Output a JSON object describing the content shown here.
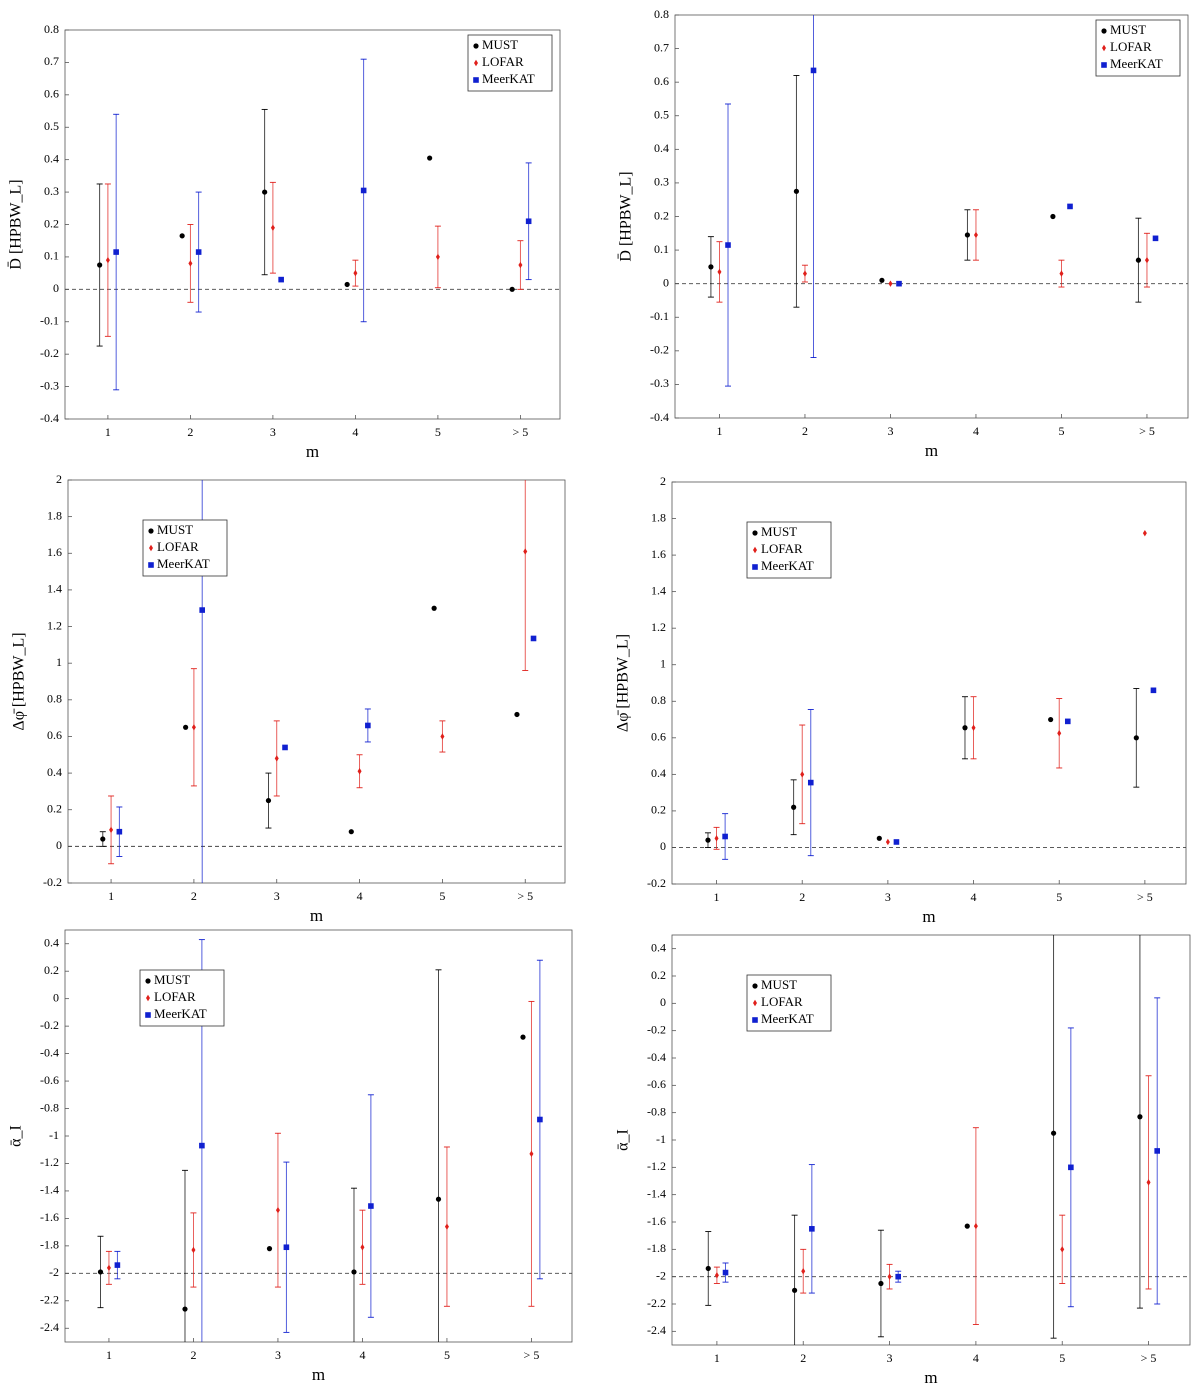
{
  "chart_data": [
    {
      "type": "errorbar",
      "ylabel": "D̄ [HPBW_L]",
      "xlabel": "m",
      "categories": [
        "1",
        "2",
        "3",
        "4",
        "5",
        "> 5"
      ],
      "ylim": [
        -0.4,
        0.8
      ],
      "yticks": [
        -0.4,
        -0.3,
        -0.2,
        -0.1,
        0,
        0.1,
        0.2,
        0.3,
        0.4,
        0.5,
        0.6,
        0.7,
        0.8
      ],
      "hline": 0,
      "legend": "upper right",
      "series": [
        {
          "name": "MUST",
          "color": "#000000",
          "marker": "circle",
          "values": [
            0.075,
            0.165,
            0.3,
            0.015,
            0.405,
            0.0
          ],
          "errors": [
            0.25,
            null,
            0.255,
            null,
            null,
            null
          ]
        },
        {
          "name": "LOFAR",
          "color": "#e0201b",
          "marker": "diamond",
          "values": [
            0.09,
            0.08,
            0.19,
            0.05,
            0.1,
            0.075
          ],
          "errors": [
            0.235,
            0.12,
            0.14,
            0.04,
            0.095,
            0.075
          ]
        },
        {
          "name": "MeerKAT",
          "color": "#1020d0",
          "marker": "square",
          "values": [
            0.115,
            0.115,
            0.03,
            0.305,
            null,
            0.21
          ],
          "errors": [
            0.425,
            0.185,
            null,
            0.405,
            null,
            0.18
          ]
        }
      ]
    },
    {
      "type": "errorbar",
      "ylabel": "D̄ [HPBW_L]",
      "xlabel": "m",
      "categories": [
        "1",
        "2",
        "3",
        "4",
        "5",
        "> 5"
      ],
      "ylim": [
        -0.4,
        0.8
      ],
      "yticks": [
        -0.4,
        -0.3,
        -0.2,
        -0.1,
        0,
        0.1,
        0.2,
        0.3,
        0.4,
        0.5,
        0.6,
        0.7,
        0.8
      ],
      "hline": 0,
      "legend": "upper right",
      "series": [
        {
          "name": "MUST",
          "color": "#000000",
          "marker": "circle",
          "values": [
            0.05,
            0.275,
            0.01,
            0.145,
            0.2,
            0.07
          ],
          "errors": [
            0.09,
            0.345,
            null,
            0.075,
            null,
            0.125
          ]
        },
        {
          "name": "LOFAR",
          "color": "#e0201b",
          "marker": "diamond",
          "values": [
            0.035,
            0.03,
            0.0,
            0.145,
            0.03,
            0.07
          ],
          "errors": [
            0.09,
            0.025,
            null,
            0.075,
            0.04,
            0.08
          ]
        },
        {
          "name": "MeerKAT",
          "color": "#1020d0",
          "marker": "square",
          "values": [
            0.115,
            0.635,
            0.0,
            null,
            0.23,
            0.135
          ],
          "errors": [
            0.42,
            0.855,
            null,
            null,
            null,
            null
          ]
        }
      ]
    },
    {
      "type": "errorbar",
      "ylabel": "Δφ̄ [HPBW_L]",
      "xlabel": "m",
      "categories": [
        "1",
        "2",
        "3",
        "4",
        "5",
        "> 5"
      ],
      "ylim": [
        -0.2,
        2
      ],
      "yticks": [
        -0.2,
        0,
        0.2,
        0.4,
        0.6,
        0.8,
        1,
        1.2,
        1.4,
        1.6,
        1.8,
        2
      ],
      "hline": 0,
      "legend": "upper left",
      "series": [
        {
          "name": "MUST",
          "color": "#000000",
          "marker": "circle",
          "values": [
            0.04,
            0.65,
            0.25,
            0.08,
            1.3,
            0.72
          ],
          "errors": [
            0.04,
            null,
            0.15,
            null,
            null,
            null
          ]
        },
        {
          "name": "LOFAR",
          "color": "#e0201b",
          "marker": "diamond",
          "values": [
            0.09,
            0.65,
            0.48,
            0.41,
            0.6,
            1.61
          ],
          "errors": [
            0.185,
            0.32,
            0.205,
            0.09,
            0.085,
            0.65
          ]
        },
        {
          "name": "MeerKAT",
          "color": "#1020d0",
          "marker": "square",
          "values": [
            0.08,
            1.29,
            0.54,
            0.66,
            null,
            1.135
          ],
          "errors": [
            0.135,
            1.6,
            null,
            0.09,
            null,
            null
          ]
        }
      ]
    },
    {
      "type": "errorbar",
      "ylabel": "Δφ̄ [HPBW_L]",
      "xlabel": "m",
      "categories": [
        "1",
        "2",
        "3",
        "4",
        "5",
        "> 5"
      ],
      "ylim": [
        -0.2,
        2
      ],
      "yticks": [
        -0.2,
        0,
        0.2,
        0.4,
        0.6,
        0.8,
        1,
        1.2,
        1.4,
        1.6,
        1.8,
        2
      ],
      "hline": 0,
      "legend": "upper left",
      "series": [
        {
          "name": "MUST",
          "color": "#000000",
          "marker": "circle",
          "values": [
            0.04,
            0.22,
            0.05,
            0.655,
            0.7,
            0.6
          ],
          "errors": [
            0.04,
            0.15,
            null,
            0.17,
            null,
            0.27
          ]
        },
        {
          "name": "LOFAR",
          "color": "#e0201b",
          "marker": "diamond",
          "values": [
            0.05,
            0.4,
            0.03,
            0.655,
            0.625,
            1.72
          ],
          "errors": [
            0.06,
            0.27,
            null,
            0.17,
            0.19,
            null
          ]
        },
        {
          "name": "MeerKAT",
          "color": "#1020d0",
          "marker": "square",
          "values": [
            0.06,
            0.355,
            0.03,
            null,
            0.69,
            0.86
          ],
          "errors": [
            0.125,
            0.4,
            null,
            null,
            null,
            null
          ]
        }
      ]
    },
    {
      "type": "errorbar",
      "ylabel": "ᾱ_I",
      "xlabel": "m",
      "categories": [
        "1",
        "2",
        "3",
        "4",
        "5",
        "> 5"
      ],
      "ylim": [
        -2.5,
        0.5
      ],
      "yticks": [
        -2.4,
        -2.2,
        -2,
        -1.8,
        -1.6,
        -1.4,
        -1.2,
        -1,
        -0.8,
        -0.6,
        -0.4,
        -0.2,
        0,
        0.2,
        0.4
      ],
      "hline": -2,
      "legend": "upper left",
      "series": [
        {
          "name": "MUST",
          "color": "#000000",
          "marker": "circle",
          "values": [
            -1.99,
            -2.26,
            -1.82,
            -1.99,
            -1.46,
            -0.28
          ],
          "errors": [
            0.26,
            1.01,
            null,
            0.61,
            1.67,
            null
          ]
        },
        {
          "name": "LOFAR",
          "color": "#e0201b",
          "marker": "diamond",
          "values": [
            -1.96,
            -1.83,
            -1.54,
            -1.81,
            -1.66,
            -1.13
          ],
          "errors": [
            0.12,
            0.27,
            0.56,
            0.27,
            0.58,
            1.11
          ]
        },
        {
          "name": "MeerKAT",
          "color": "#1020d0",
          "marker": "square",
          "values": [
            -1.94,
            -1.07,
            -1.81,
            -1.51,
            null,
            -0.88
          ],
          "errors": [
            0.1,
            1.5,
            0.62,
            0.81,
            null,
            1.16
          ]
        }
      ]
    },
    {
      "type": "errorbar",
      "ylabel": "ᾱ_I",
      "xlabel": "m",
      "categories": [
        "1",
        "2",
        "3",
        "4",
        "5",
        "> 5"
      ],
      "ylim": [
        -2.5,
        0.5
      ],
      "yticks": [
        -2.4,
        -2.2,
        -2,
        -1.8,
        -1.6,
        -1.4,
        -1.2,
        -1,
        -0.8,
        -0.6,
        -0.4,
        -0.2,
        0,
        0.2,
        0.4
      ],
      "hline": -2,
      "legend": "upper left",
      "series": [
        {
          "name": "MUST",
          "color": "#000000",
          "marker": "circle",
          "values": [
            -1.94,
            -2.1,
            -2.05,
            -1.63,
            -0.95,
            -0.83
          ],
          "errors": [
            0.27,
            0.55,
            0.39,
            null,
            1.5,
            1.4
          ]
        },
        {
          "name": "LOFAR",
          "color": "#e0201b",
          "marker": "diamond",
          "values": [
            -1.99,
            -1.96,
            -2.0,
            -1.63,
            -1.8,
            -1.31
          ],
          "errors": [
            0.06,
            0.16,
            0.09,
            0.72,
            0.25,
            0.78
          ]
        },
        {
          "name": "MeerKAT",
          "color": "#1020d0",
          "marker": "square",
          "values": [
            -1.97,
            -1.65,
            -2.0,
            null,
            -1.2,
            -1.08
          ],
          "errors": [
            0.07,
            0.47,
            0.04,
            null,
            1.02,
            1.12
          ]
        }
      ]
    }
  ]
}
